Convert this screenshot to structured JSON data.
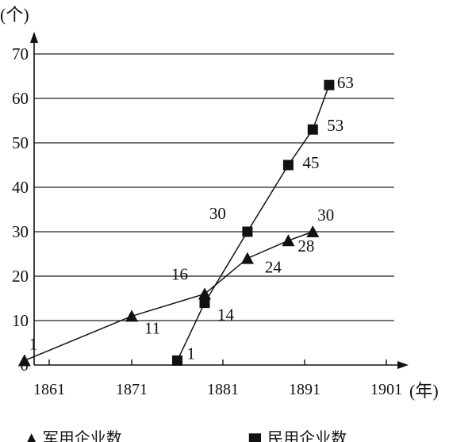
{
  "chart_data": {
    "type": "line",
    "y_unit": "(个)",
    "x_unit": "(年)",
    "x_ticks": [
      1861,
      1871,
      1881,
      1891,
      1901
    ],
    "y_ticks": [
      0,
      10,
      20,
      30,
      40,
      50,
      60,
      70
    ],
    "ylim": [
      0,
      75
    ],
    "xlim": [
      1858,
      1911
    ],
    "grid": true,
    "series": [
      {
        "name": "军用企业数",
        "marker": "triangle",
        "color": "#111111",
        "points": [
          {
            "x": 1858,
            "y": 1,
            "label": "1"
          },
          {
            "x": 1871,
            "y": 11,
            "label": "11"
          },
          {
            "x": 1879,
            "y": 16,
            "label": "16"
          },
          {
            "x": 1884,
            "y": 24,
            "label": "24"
          },
          {
            "x": 1889,
            "y": 28,
            "label": "28"
          },
          {
            "x": 1892,
            "y": 30,
            "label": "30"
          }
        ]
      },
      {
        "name": "民用企业数",
        "marker": "square",
        "color": "#111111",
        "points": [
          {
            "x": 1876,
            "y": 1,
            "label": "1"
          },
          {
            "x": 1879,
            "y": 14,
            "label": "14"
          },
          {
            "x": 1884,
            "y": 30,
            "label": "30"
          },
          {
            "x": 1889,
            "y": 45,
            "label": "45"
          },
          {
            "x": 1892,
            "y": 53,
            "label": "53"
          },
          {
            "x": 1894,
            "y": 63,
            "label": "63"
          }
        ]
      }
    ]
  }
}
